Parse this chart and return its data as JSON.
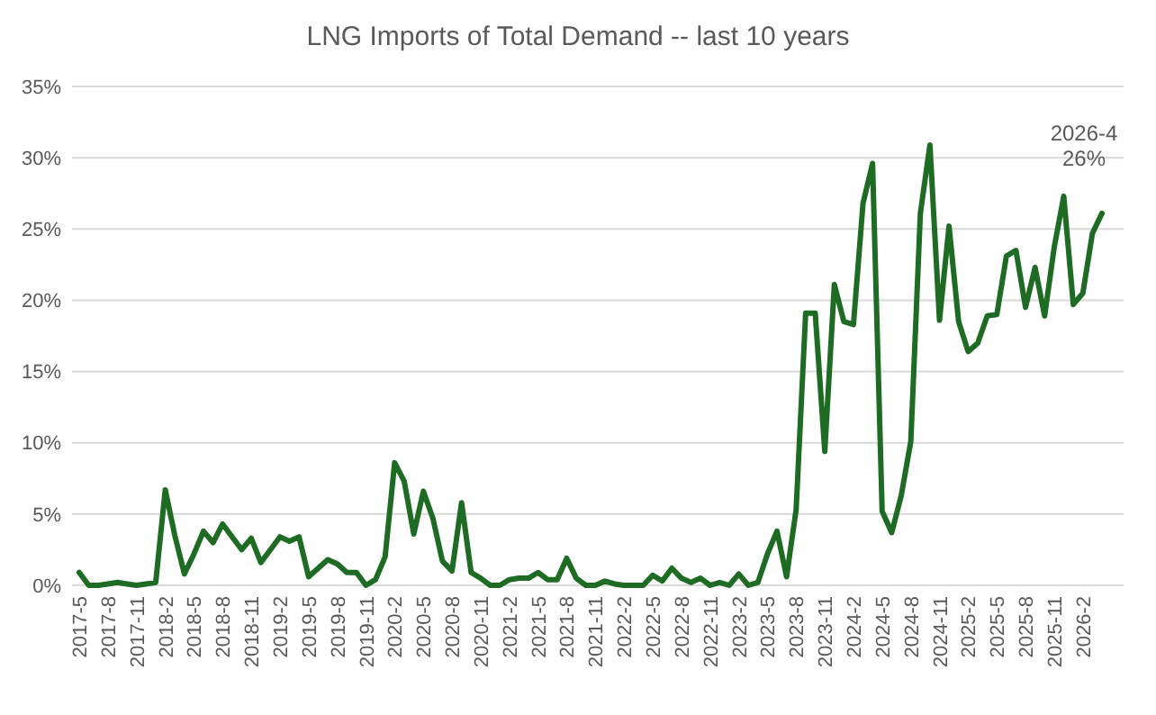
{
  "chart_data": {
    "type": "line",
    "title": "LNG Imports of Total Demand -- last 10 years",
    "categories": [
      "2017-5",
      null,
      null,
      "2017-8",
      null,
      null,
      "2017-11",
      null,
      null,
      "2018-2",
      null,
      null,
      "2018-5",
      null,
      null,
      "2018-8",
      null,
      null,
      "2018-11",
      null,
      null,
      "2019-2",
      null,
      null,
      "2019-5",
      null,
      null,
      "2019-8",
      null,
      null,
      "2019-11",
      null,
      null,
      "2020-2",
      null,
      null,
      "2020-5",
      null,
      null,
      "2020-8",
      null,
      null,
      "2020-11",
      null,
      null,
      "2021-2",
      null,
      null,
      "2021-5",
      null,
      null,
      "2021-8",
      null,
      null,
      "2021-11",
      null,
      null,
      "2022-2",
      null,
      null,
      "2022-5",
      null,
      null,
      "2022-8",
      null,
      null,
      "2022-11",
      null,
      null,
      "2023-2",
      null,
      null,
      "2023-5",
      null,
      null,
      "2023-8",
      null,
      null,
      "2023-11",
      null,
      null,
      "2024-2",
      null,
      null,
      "2024-5",
      null,
      null,
      "2024-8",
      null,
      null,
      "2024-11",
      null,
      null,
      "2025-2",
      null,
      null,
      "2025-5",
      null,
      null,
      "2025-8",
      null,
      null,
      "2025-11",
      null,
      null,
      "2026-2",
      null,
      null
    ],
    "series": [
      {
        "color": "#1e6b23",
        "values": [
          0.9,
          0,
          0,
          0.1,
          0.2,
          0.1,
          0,
          0.1,
          0.2,
          6.7,
          3.5,
          0.8,
          2.2,
          3.8,
          3.0,
          4.3,
          3.4,
          2.5,
          3.3,
          1.6,
          2.5,
          3.4,
          3.1,
          3.4,
          0.6,
          1.2,
          1.8,
          1.5,
          0.9,
          0.9,
          0,
          0.4,
          2.0,
          8.6,
          7.3,
          3.6,
          6.6,
          4.7,
          1.7,
          1.0,
          5.8,
          0.9,
          0.5,
          0,
          0,
          0.4,
          0.5,
          0.5,
          0.9,
          0.4,
          0.4,
          1.9,
          0.5,
          0,
          0,
          0.3,
          0.1,
          0,
          0,
          0,
          0.7,
          0.3,
          1.2,
          0.5,
          0.2,
          0.5,
          0,
          0.2,
          0,
          0.8,
          0,
          0.2,
          2.2,
          3.8,
          0.6,
          5.3,
          19.1,
          19.1,
          9.4,
          21.1,
          18.5,
          18.3,
          26.8,
          29.6,
          5.2,
          3.7,
          6.3,
          10.1,
          26.1,
          30.9,
          18.6,
          25.2,
          18.5,
          16.4,
          17.0,
          18.9,
          19.0,
          23.1,
          23.5,
          19.5,
          22.3,
          18.9,
          23.7,
          27.3,
          19.7,
          20.5,
          24.7,
          26.1
        ]
      }
    ],
    "ylim": [
      0,
      35
    ],
    "yticks": [
      {
        "value": 0,
        "label": "0%"
      },
      {
        "value": 5,
        "label": "5%"
      },
      {
        "value": 10,
        "label": "10%"
      },
      {
        "value": 15,
        "label": "15%"
      },
      {
        "value": 20,
        "label": "20%"
      },
      {
        "value": 25,
        "label": "25%"
      },
      {
        "value": 30,
        "label": "30%"
      },
      {
        "value": 35,
        "label": "35%"
      }
    ],
    "grid": "y",
    "marker": "none",
    "line_style": "solid",
    "annotations": [
      "2026-4\n26%"
    ]
  }
}
